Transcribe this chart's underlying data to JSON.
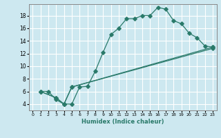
{
  "xlabel": "Humidex (Indice chaleur)",
  "bg_color": "#cde8f0",
  "grid_color": "#ffffff",
  "line_color": "#2a7a6a",
  "xlim": [
    -0.5,
    23.5
  ],
  "ylim": [
    3,
    19.8
  ],
  "xticks": [
    0,
    1,
    2,
    3,
    4,
    5,
    6,
    7,
    8,
    9,
    10,
    11,
    12,
    13,
    14,
    15,
    16,
    17,
    18,
    19,
    20,
    21,
    22,
    23
  ],
  "yticks": [
    4,
    6,
    8,
    10,
    12,
    14,
    16,
    18
  ],
  "series1_x": [
    1,
    2,
    3,
    4,
    5,
    6,
    7,
    8,
    9,
    10,
    11,
    12,
    13,
    14,
    15,
    16,
    17,
    18,
    19,
    20,
    21,
    22,
    23
  ],
  "series1_y": [
    6,
    6,
    4.7,
    4.0,
    4.0,
    6.7,
    6.8,
    9.2,
    12.2,
    15.0,
    16.0,
    17.5,
    17.5,
    18.0,
    18.0,
    19.3,
    19.0,
    17.2,
    16.7,
    15.2,
    14.5,
    13.2,
    13.0
  ],
  "series2_x": [
    1,
    3,
    4,
    5,
    23
  ],
  "series2_y": [
    6,
    5.0,
    4.0,
    6.7,
    13.0
  ],
  "series3_x": [
    1,
    3,
    4,
    5,
    23
  ],
  "series3_y": [
    6,
    5.0,
    4.0,
    6.7,
    12.8
  ],
  "markersize": 2.8
}
